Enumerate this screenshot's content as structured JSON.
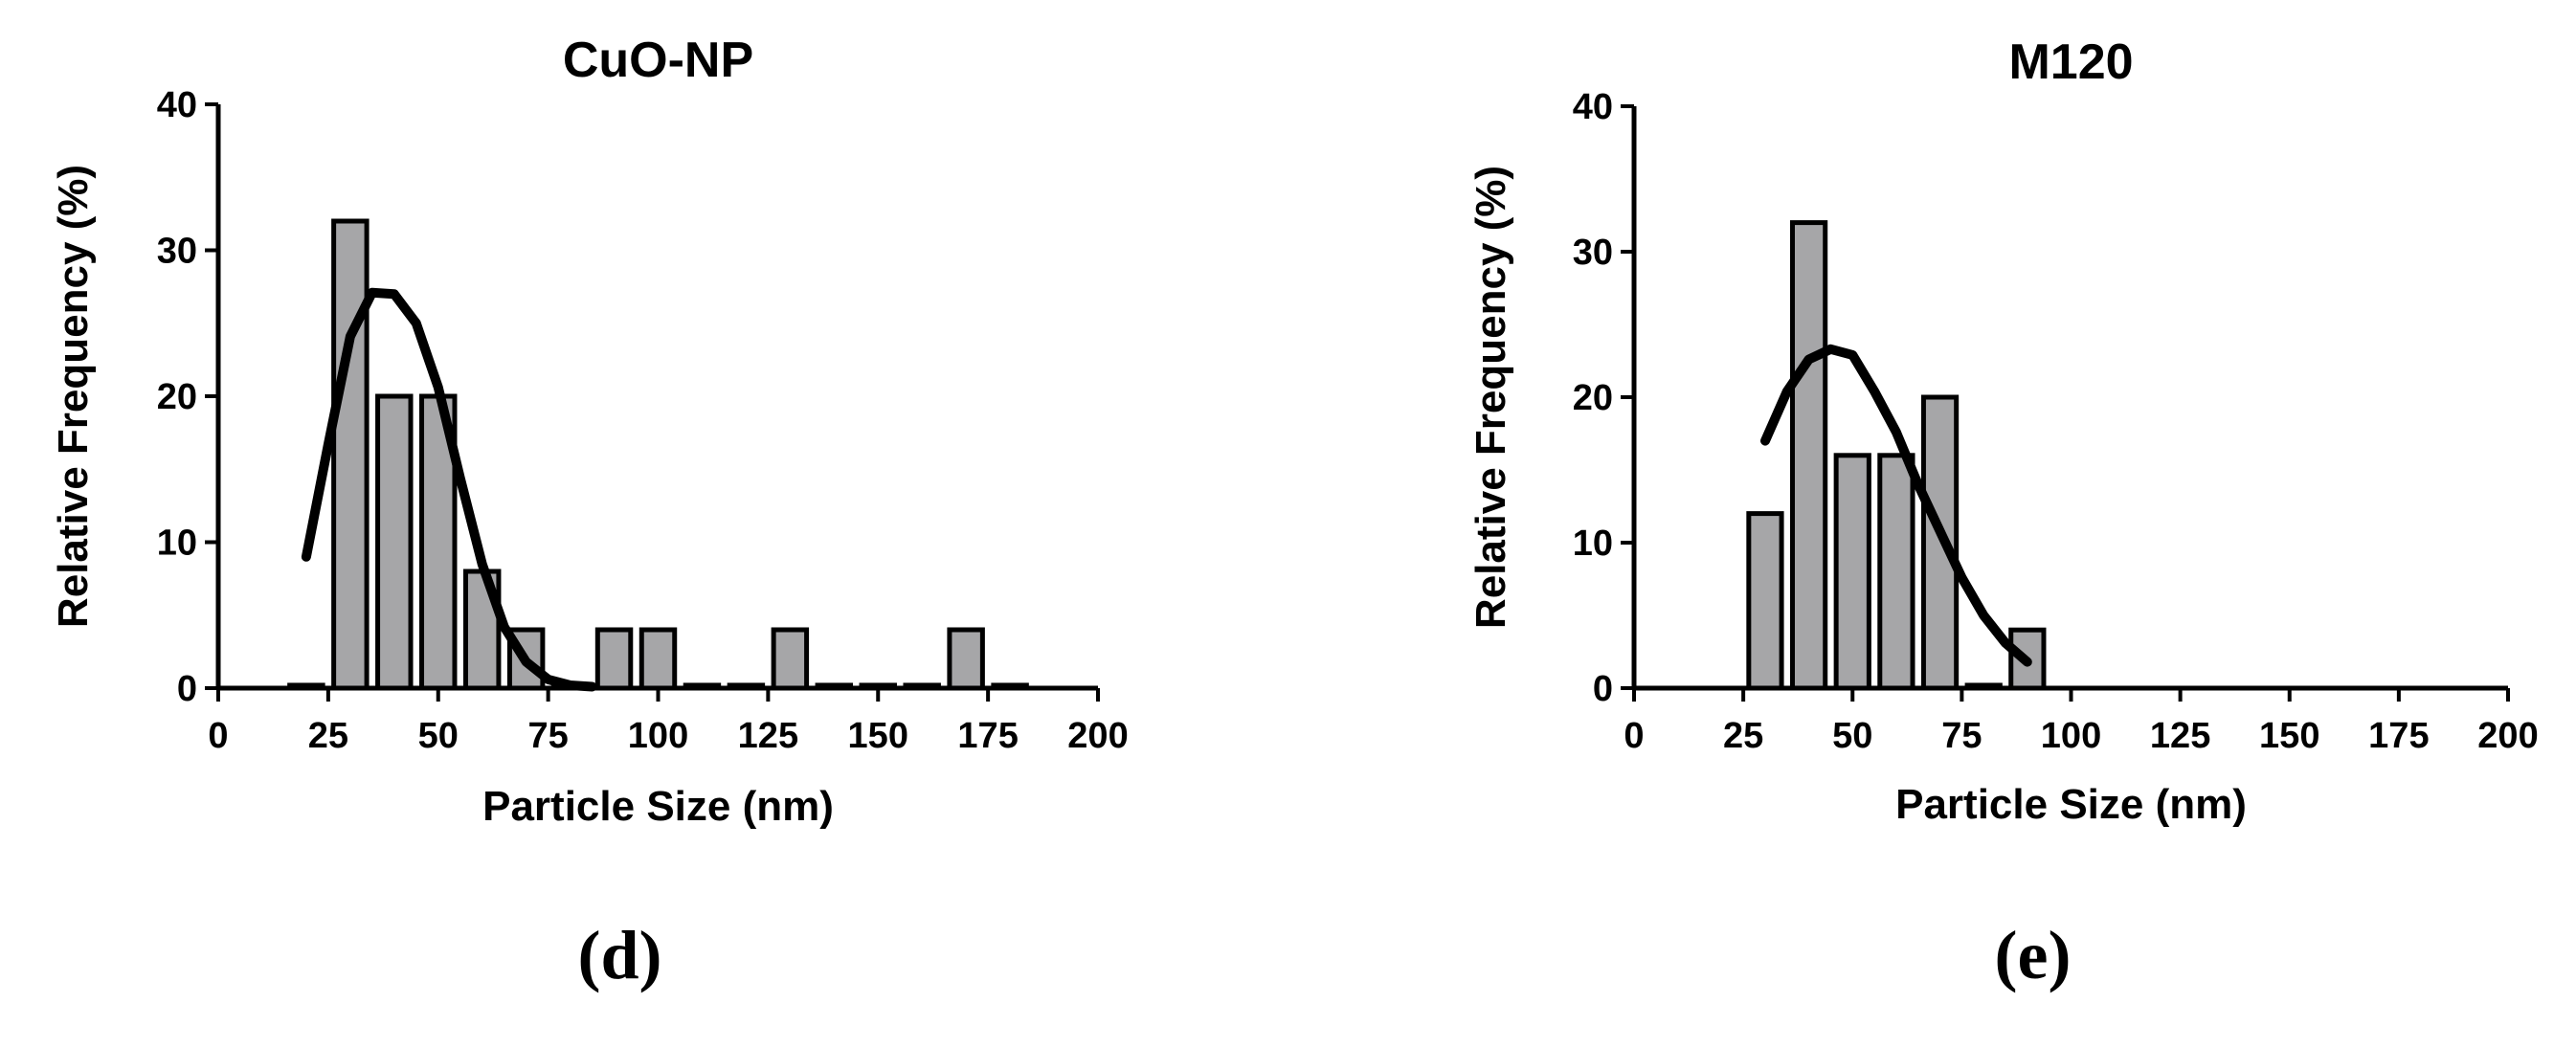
{
  "chart_data": [
    {
      "type": "bar",
      "title": "CuO-NP",
      "panel_label": "(d)",
      "xlabel": "Particle Size (nm)",
      "ylabel": "Relative Frequency (%)",
      "xlim": [
        0,
        200
      ],
      "ylim": [
        0,
        40
      ],
      "x_ticks": [
        "0",
        "25",
        "50",
        "75",
        "100",
        "125",
        "150",
        "175",
        "200"
      ],
      "y_ticks": [
        "0",
        "10",
        "20",
        "30",
        "40"
      ],
      "bin_width": 7.5,
      "bins": [
        {
          "x": 20,
          "y": 0.2
        },
        {
          "x": 30,
          "y": 32
        },
        {
          "x": 40,
          "y": 20
        },
        {
          "x": 50,
          "y": 20
        },
        {
          "x": 60,
          "y": 8
        },
        {
          "x": 70,
          "y": 4
        },
        {
          "x": 80,
          "y": 0.2
        },
        {
          "x": 90,
          "y": 4
        },
        {
          "x": 100,
          "y": 4
        },
        {
          "x": 110,
          "y": 0.2
        },
        {
          "x": 120,
          "y": 0.2
        },
        {
          "x": 130,
          "y": 4
        },
        {
          "x": 140,
          "y": 0.2
        },
        {
          "x": 150,
          "y": 0.2
        },
        {
          "x": 160,
          "y": 0.2
        },
        {
          "x": 170,
          "y": 4
        },
        {
          "x": 180,
          "y": 0.2
        }
      ],
      "fit_curve": {
        "type": "gaussian",
        "x": [
          20,
          25,
          30,
          35,
          40,
          45,
          50,
          55,
          60,
          65,
          70,
          75,
          80,
          85
        ],
        "y": [
          9.0,
          16.7,
          24.1,
          27.1,
          27.0,
          25.0,
          20.6,
          14.4,
          8.5,
          4.2,
          1.8,
          0.6,
          0.2,
          0.1
        ]
      }
    },
    {
      "type": "bar",
      "title": "M120",
      "panel_label": "(e)",
      "xlabel": "Particle Size (nm)",
      "ylabel": "Relative Frequency (%)",
      "xlim": [
        0,
        200
      ],
      "ylim": [
        0,
        40
      ],
      "x_ticks": [
        "0",
        "25",
        "50",
        "75",
        "100",
        "125",
        "150",
        "175",
        "200"
      ],
      "y_ticks": [
        "0",
        "10",
        "20",
        "30",
        "40"
      ],
      "bin_width": 7.5,
      "bins": [
        {
          "x": 30,
          "y": 12
        },
        {
          "x": 40,
          "y": 32
        },
        {
          "x": 50,
          "y": 16
        },
        {
          "x": 60,
          "y": 16
        },
        {
          "x": 70,
          "y": 20
        },
        {
          "x": 80,
          "y": 0.2
        },
        {
          "x": 90,
          "y": 4
        }
      ],
      "fit_curve": {
        "type": "gaussian",
        "x": [
          30,
          35,
          40,
          45,
          50,
          55,
          60,
          65,
          70,
          75,
          80,
          85,
          90
        ],
        "y": [
          17.0,
          20.4,
          22.6,
          23.3,
          22.9,
          20.4,
          17.6,
          14.0,
          10.8,
          7.6,
          5.0,
          3.1,
          1.8
        ]
      }
    }
  ]
}
